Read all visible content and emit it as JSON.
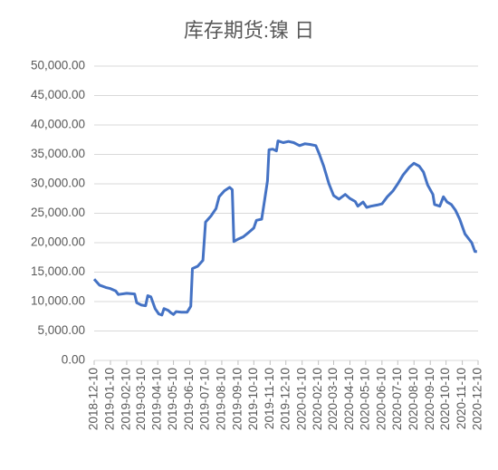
{
  "chart_data": {
    "type": "line",
    "title": "库存期货:镍 日",
    "x": [
      "2018-12-10",
      "2018-12-20",
      "2019-01-01",
      "2019-01-10",
      "2019-01-20",
      "2019-01-25",
      "2019-02-10",
      "2019-02-25",
      "2019-03-01",
      "2019-03-10",
      "2019-03-18",
      "2019-03-22",
      "2019-03-28",
      "2019-04-05",
      "2019-04-12",
      "2019-04-18",
      "2019-04-22",
      "2019-04-30",
      "2019-05-05",
      "2019-05-10",
      "2019-05-15",
      "2019-05-25",
      "2019-06-05",
      "2019-06-12",
      "2019-06-15",
      "2019-06-25",
      "2019-07-05",
      "2019-07-10",
      "2019-07-20",
      "2019-07-30",
      "2019-08-05",
      "2019-08-15",
      "2019-08-25",
      "2019-08-30",
      "2019-09-02",
      "2019-09-10",
      "2019-09-20",
      "2019-10-01",
      "2019-10-10",
      "2019-10-15",
      "2019-10-25",
      "2019-10-31",
      "2019-11-05",
      "2019-11-08",
      "2019-11-15",
      "2019-11-22",
      "2019-11-25",
      "2019-12-05",
      "2019-12-15",
      "2019-12-25",
      "2020-01-05",
      "2020-01-15",
      "2020-01-25",
      "2020-02-05",
      "2020-02-12",
      "2020-02-20",
      "2020-03-01",
      "2020-03-10",
      "2020-03-20",
      "2020-04-01",
      "2020-04-10",
      "2020-04-20",
      "2020-04-25",
      "2020-05-05",
      "2020-05-12",
      "2020-05-20",
      "2020-06-01",
      "2020-06-10",
      "2020-06-20",
      "2020-07-01",
      "2020-07-10",
      "2020-07-20",
      "2020-08-01",
      "2020-08-10",
      "2020-08-20",
      "2020-08-28",
      "2020-09-05",
      "2020-09-15",
      "2020-09-18",
      "2020-09-28",
      "2020-10-05",
      "2020-10-12",
      "2020-10-20",
      "2020-10-28",
      "2020-11-05",
      "2020-11-15",
      "2020-11-28",
      "2020-12-04",
      "2020-12-08"
    ],
    "series": [
      {
        "color": "#4472c4",
        "values": [
          13800,
          12800,
          12400,
          12200,
          11800,
          11200,
          11400,
          11300,
          9800,
          9400,
          9300,
          11000,
          10800,
          8800,
          7900,
          7700,
          8800,
          8500,
          8100,
          7800,
          8300,
          8200,
          8200,
          9200,
          15600,
          16000,
          17000,
          23500,
          24500,
          25800,
          27800,
          28800,
          29400,
          29000,
          20200,
          20600,
          21000,
          21800,
          22500,
          23800,
          24000,
          27500,
          30500,
          35800,
          35900,
          35600,
          37300,
          37000,
          37200,
          37000,
          36500,
          36800,
          36700,
          36500,
          35000,
          33000,
          30000,
          28000,
          27400,
          28200,
          27500,
          27000,
          26200,
          26900,
          26000,
          26200,
          26400,
          26600,
          27800,
          28800,
          30000,
          31500,
          32800,
          33500,
          33000,
          32000,
          29800,
          28200,
          26500,
          26200,
          27800,
          26900,
          26500,
          25500,
          24000,
          21500,
          20000,
          18500,
          18500
        ]
      }
    ],
    "xlim": [
      "2018-12-10",
      "2020-12-10"
    ],
    "xticks": [
      "2018-12-10",
      "2019-01-10",
      "2019-02-10",
      "2019-03-10",
      "2019-04-10",
      "2019-05-10",
      "2019-06-10",
      "2019-07-10",
      "2019-08-10",
      "2019-09-10",
      "2019-10-10",
      "2019-11-10",
      "2019-12-10",
      "2020-01-10",
      "2020-02-10",
      "2020-03-10",
      "2020-04-10",
      "2020-05-10",
      "2020-06-10",
      "2020-07-10",
      "2020-08-10",
      "2020-09-10",
      "2020-10-10",
      "2020-11-10",
      "2020-12-10"
    ],
    "ylim": [
      0,
      50000
    ],
    "yticks": [
      {
        "value": 0,
        "label": "0.00"
      },
      {
        "value": 5000,
        "label": "5,000.00"
      },
      {
        "value": 10000,
        "label": "10,000.00"
      },
      {
        "value": 15000,
        "label": "15,000.00"
      },
      {
        "value": 20000,
        "label": "20,000.00"
      },
      {
        "value": 25000,
        "label": "25,000.00"
      },
      {
        "value": 30000,
        "label": "30,000.00"
      },
      {
        "value": 35000,
        "label": "35,000.00"
      },
      {
        "value": 40000,
        "label": "40,000.00"
      },
      {
        "value": 45000,
        "label": "45,000.00"
      },
      {
        "value": 50000,
        "label": "50,000.00"
      }
    ],
    "grid": true
  }
}
